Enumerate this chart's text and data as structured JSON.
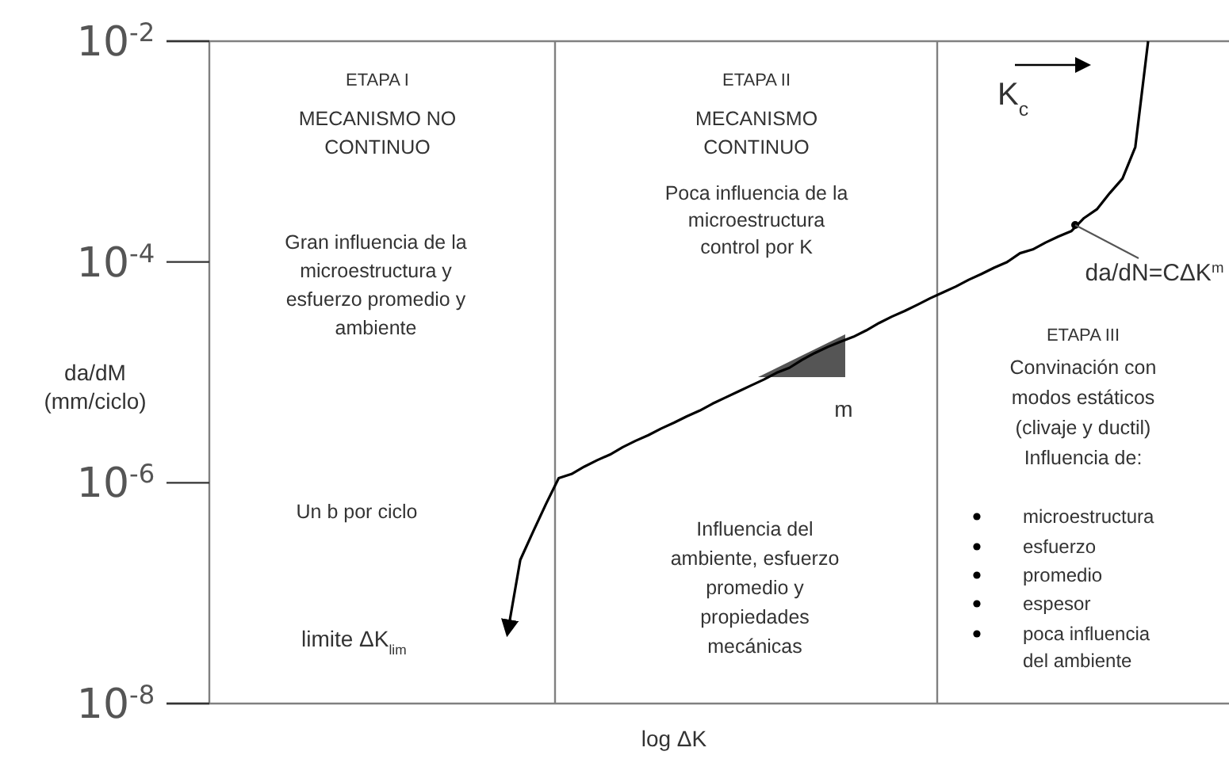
{
  "chart_data": {
    "type": "line",
    "xlabel": "log ΔK",
    "ylabel": "da/dM (mm/ciclo)",
    "log": "y",
    "grid": false,
    "marker": "none",
    "line_style": "solid",
    "categories": [
      null,
      null,
      null,
      null,
      null,
      null,
      null,
      null,
      null,
      null,
      null,
      null,
      null,
      null,
      null,
      null,
      null,
      null,
      null,
      null,
      null,
      null,
      null,
      null,
      null,
      null,
      null,
      null,
      null,
      null,
      null,
      null,
      null,
      null,
      null,
      null,
      null,
      null,
      null,
      null,
      null,
      null,
      null,
      null,
      null,
      null,
      null,
      null,
      null,
      null,
      null
    ],
    "ylim": [
      1e-08,
      0.01
    ],
    "yticks": [
      {
        "value": 1e-08,
        "label": "10$^{-8}$"
      },
      {
        "value": 1e-06,
        "label": "10$^{-6}$"
      },
      {
        "value": 0.0001,
        "label": "10$^{-4}$"
      },
      {
        "value": 0.01,
        "label": "10$^{-2}$"
      }
    ],
    "series": [
      {
        "color": "#000000",
        "values": [
          4.3e-08,
          2e-07,
          3.6e-07,
          6.4e-07,
          1.1e-06,
          1.2e-06,
          1.4e-06,
          1.6e-06,
          1.8e-06,
          2.1e-06,
          2.4e-06,
          2.7e-06,
          3.1e-06,
          3.5e-06,
          4e-06,
          4.5e-06,
          5.2e-06,
          5.9e-06,
          6.7e-06,
          7.6e-06,
          8.6e-06,
          9.9e-06,
          1.1e-05,
          1.3e-05,
          1.5e-05,
          1.7e-05,
          1.9e-05,
          2.1e-05,
          2.4e-05,
          2.8e-05,
          3.2e-05,
          3.6e-05,
          4.1e-05,
          4.7e-05,
          5.3e-05,
          6e-05,
          6.9e-05,
          7.8e-05,
          8.9e-05,
          0.0001,
          0.00012,
          0.00013,
          0.00015,
          0.00017,
          0.00019,
          0.00025,
          0.0003,
          0.00042,
          0.00057,
          0.0011,
          0.01
        ]
      }
    ],
    "annotations": [
      "ETAPA I",
      "MECANISMO NO CONTINUO",
      "Gran influencia de la microestructura y esfuerzo promedio y ambiente",
      "Un b por ciclo",
      "limite ΔK$_{lim}$",
      "ETAPA II",
      "MECANISMO CONTINUO",
      "Poca influencia de la microestructura control por K",
      "m",
      "Influencia del ambiente, esfuerzo promedio y propiedades mecánicas",
      "K$_{c}$",
      "da/dN=CΔK$^{m}$",
      "ETAPA III",
      "Convinación con modos estáticos (clivaje y ductil) Influencia de:",
      "microestructura",
      "esfuerzo",
      "promedio",
      "espesor",
      "poca influencia del ambiente"
    ]
  }
}
